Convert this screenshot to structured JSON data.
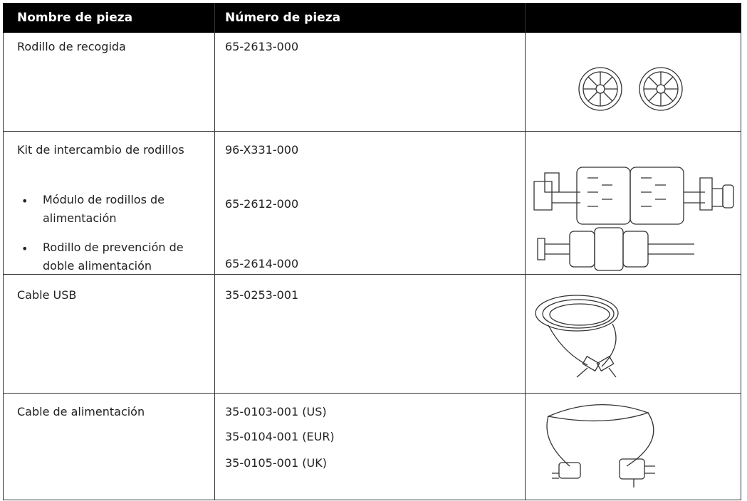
{
  "table": {
    "headers": [
      "Nombre de pieza",
      "Número de pieza"
    ],
    "rows": [
      {
        "name": "Rodillo de recogida",
        "numbers": [
          "65-2613-000"
        ]
      },
      {
        "name": "Kit de intercambio de rodillos",
        "items": [
          "Módulo de rodillos de alimentación",
          "Rodillo de prevención de doble alimentación"
        ],
        "numbers": [
          "96-X331-000",
          "65-2612-000",
          "65-2614-000"
        ]
      },
      {
        "name": "Cable USB",
        "numbers": [
          "35-0253-001"
        ]
      },
      {
        "name": "Cable de alimentación",
        "numbers": [
          "35-0103-001 (US)",
          "35-0104-001 (EUR)",
          "35-0105-001 (UK)"
        ]
      }
    ]
  }
}
